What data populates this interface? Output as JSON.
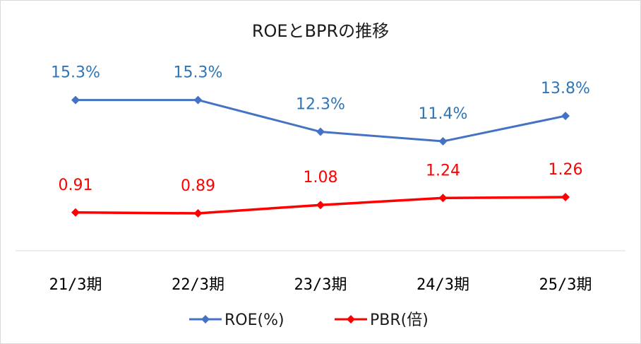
{
  "chart_data": {
    "type": "line",
    "title": "ROEとBPRの推移",
    "categories": [
      "21/3期",
      "22/3期",
      "23/3期",
      "24/3期",
      "25/3期"
    ],
    "series": [
      {
        "name": "ROE(%)",
        "values": [
          15.3,
          15.3,
          12.3,
          11.4,
          13.8
        ],
        "labels": [
          "15.3%",
          "15.3%",
          "12.3%",
          "11.4%",
          "13.8%"
        ],
        "color": "#4472c4",
        "axis": "left"
      },
      {
        "name": "PBR(倍)",
        "values": [
          0.91,
          0.89,
          1.08,
          1.24,
          1.26
        ],
        "labels": [
          "0.91",
          "0.89",
          "1.08",
          "1.24",
          "1.26"
        ],
        "color": "#ff0000",
        "axis": "right"
      }
    ],
    "label_colors": {
      "ROE(%)": "#2e75b6",
      "PBR(倍)": "#ff0000"
    },
    "legend_position": "bottom",
    "grid": false,
    "axis_lines": "baseline only"
  }
}
